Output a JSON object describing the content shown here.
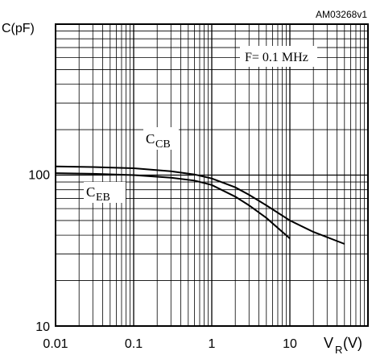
{
  "figure_id": "AM03268v1",
  "chart_data": {
    "type": "line",
    "y_axis_title": "C(pF)",
    "x_axis_title_main": "V",
    "x_axis_title_sub": "R",
    "x_axis_title_unit": "(V)",
    "x_scale": "log",
    "y_scale": "log",
    "xlim": [
      0.01,
      100
    ],
    "ylim": [
      10,
      1000
    ],
    "x_tick_labels": [
      "0.01",
      "0.1",
      "1",
      "10"
    ],
    "y_tick_labels": [
      "10",
      "100"
    ],
    "grid": true,
    "annotation": "F= 0.1 MHz",
    "series": [
      {
        "name_main": "C",
        "name_sub": "CB",
        "x": [
          0.01,
          0.03,
          0.1,
          0.3,
          0.6,
          1,
          2,
          3,
          5,
          10,
          20,
          50
        ],
        "y": [
          114,
          113,
          111,
          106,
          101,
          95,
          83,
          74,
          63,
          50,
          42,
          35
        ]
      },
      {
        "name_main": "C",
        "name_sub": "EB",
        "x": [
          0.01,
          0.03,
          0.1,
          0.3,
          0.6,
          1,
          2,
          3,
          5,
          10
        ],
        "y": [
          103,
          102,
          100,
          96,
          92,
          86,
          72,
          63,
          52,
          38
        ]
      }
    ]
  }
}
